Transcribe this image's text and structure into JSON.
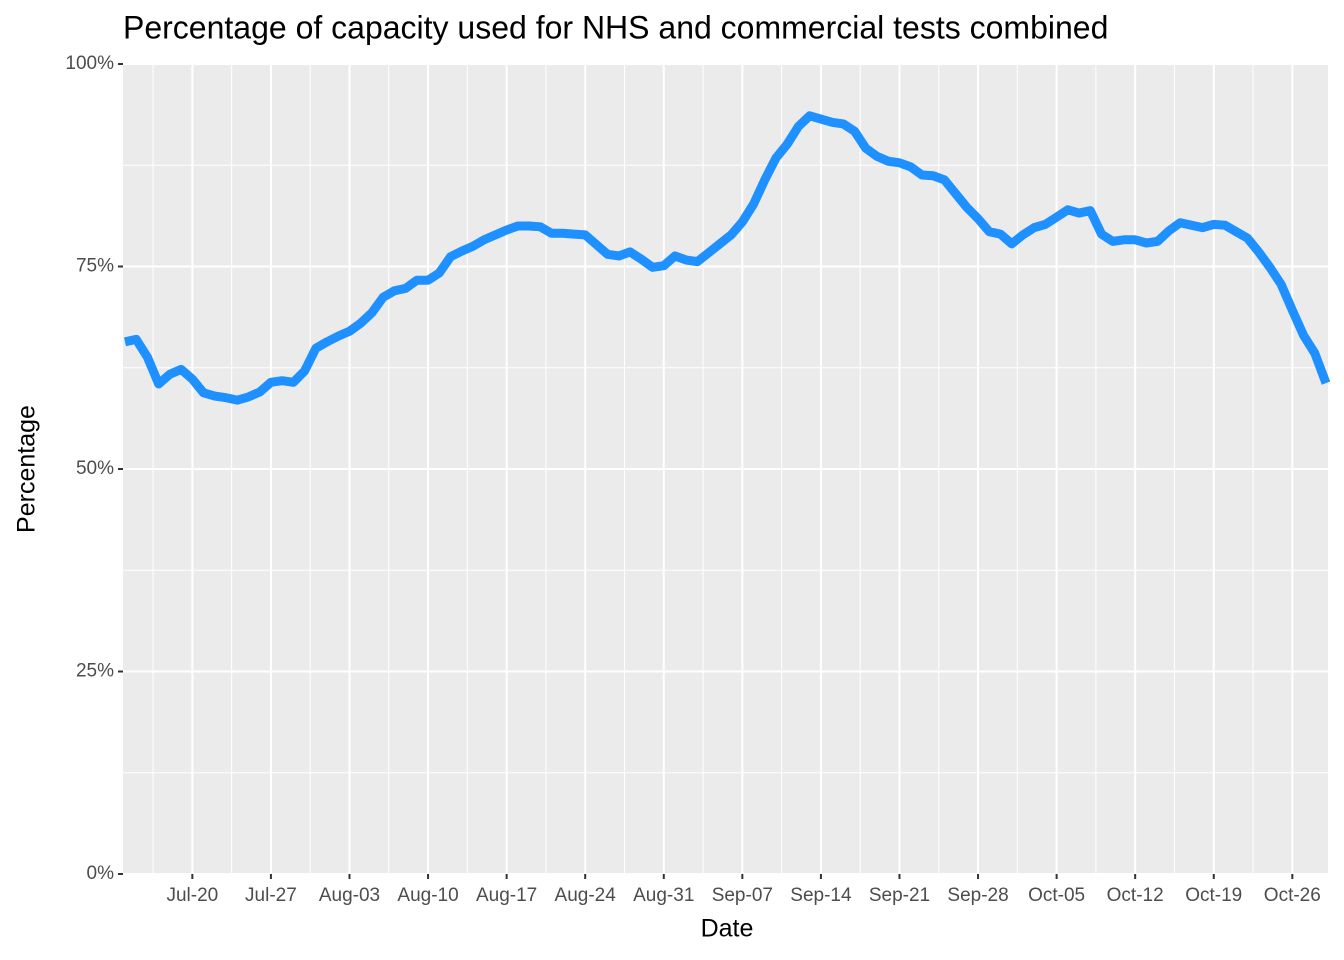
{
  "chart_data": {
    "type": "line",
    "title": "Percentage of capacity used for NHS and commercial tests combined",
    "x_label": "Date",
    "y_label": "Percentage",
    "x": [
      "Jul-14",
      "Jul-15",
      "Jul-16",
      "Jul-17",
      "Jul-18",
      "Jul-19",
      "Jul-20",
      "Jul-21",
      "Jul-22",
      "Jul-23",
      "Jul-24",
      "Jul-25",
      "Jul-26",
      "Jul-27",
      "Jul-28",
      "Jul-29",
      "Jul-30",
      "Jul-31",
      "Aug-01",
      "Aug-02",
      "Aug-03",
      "Aug-04",
      "Aug-05",
      "Aug-06",
      "Aug-07",
      "Aug-08",
      "Aug-09",
      "Aug-10",
      "Aug-11",
      "Aug-12",
      "Aug-13",
      "Aug-14",
      "Aug-15",
      "Aug-16",
      "Aug-17",
      "Aug-18",
      "Aug-19",
      "Aug-20",
      "Aug-21",
      "Aug-22",
      "Aug-23",
      "Aug-24",
      "Aug-25",
      "Aug-26",
      "Aug-27",
      "Aug-28",
      "Aug-29",
      "Aug-30",
      "Aug-31",
      "Sep-01",
      "Sep-02",
      "Sep-03",
      "Sep-04",
      "Sep-05",
      "Sep-06",
      "Sep-07",
      "Sep-08",
      "Sep-09",
      "Sep-10",
      "Sep-11",
      "Sep-12",
      "Sep-13",
      "Sep-14",
      "Sep-15",
      "Sep-16",
      "Sep-17",
      "Sep-18",
      "Sep-19",
      "Sep-20",
      "Sep-21",
      "Sep-22",
      "Sep-23",
      "Sep-24",
      "Sep-25",
      "Sep-26",
      "Sep-27",
      "Sep-28",
      "Sep-29",
      "Sep-30",
      "Oct-01",
      "Oct-02",
      "Oct-03",
      "Oct-04",
      "Oct-05",
      "Oct-06",
      "Oct-07",
      "Oct-08",
      "Oct-09",
      "Oct-10",
      "Oct-11",
      "Oct-12",
      "Oct-13",
      "Oct-14",
      "Oct-15",
      "Oct-16",
      "Oct-17",
      "Oct-18",
      "Oct-19",
      "Oct-20",
      "Oct-21",
      "Oct-22",
      "Oct-23",
      "Oct-24",
      "Oct-25",
      "Oct-26",
      "Oct-27",
      "Oct-28",
      "Oct-29"
    ],
    "series": [
      {
        "color": "#1e90ff",
        "values": [
          65.7,
          66.0,
          63.8,
          60.5,
          61.7,
          62.3,
          61.1,
          59.4,
          59.0,
          58.8,
          58.5,
          58.9,
          59.5,
          60.7,
          60.9,
          60.7,
          62.1,
          64.9,
          65.7,
          66.4,
          67.0,
          68.0,
          69.3,
          71.2,
          72.0,
          72.3,
          73.3,
          73.3,
          74.2,
          76.2,
          76.9,
          77.5,
          78.3,
          78.9,
          79.5,
          80.0,
          80.0,
          79.9,
          79.1,
          79.1,
          79.0,
          78.9,
          77.7,
          76.5,
          76.3,
          76.8,
          75.9,
          74.9,
          75.1,
          76.3,
          75.8,
          75.6,
          76.7,
          77.8,
          78.9,
          80.5,
          82.7,
          85.7,
          88.4,
          90.1,
          92.3,
          93.6,
          93.2,
          92.8,
          92.6,
          91.7,
          89.6,
          88.6,
          88.0,
          87.8,
          87.3,
          86.3,
          86.2,
          85.7,
          84.0,
          82.3,
          80.9,
          79.3,
          79.0,
          77.8,
          78.9,
          79.8,
          80.2,
          81.1,
          82.0,
          81.6,
          81.9,
          79.0,
          78.1,
          78.3,
          78.3,
          77.9,
          78.1,
          79.4,
          80.4,
          80.1,
          79.8,
          80.2,
          80.1,
          79.3,
          78.5,
          76.8,
          74.9,
          72.8,
          69.6,
          66.5,
          64.3,
          60.6
        ]
      }
    ],
    "xticks": [
      "Jul-20",
      "Jul-27",
      "Aug-03",
      "Aug-10",
      "Aug-17",
      "Aug-24",
      "Aug-31",
      "Sep-07",
      "Sep-14",
      "Sep-21",
      "Sep-28",
      "Oct-05",
      "Oct-12",
      "Oct-19",
      "Oct-26"
    ],
    "ylim": [
      0,
      100
    ],
    "yticks": [
      {
        "value": 0,
        "label": "0%"
      },
      {
        "value": 25,
        "label": "25%"
      },
      {
        "value": 50,
        "label": "50%"
      },
      {
        "value": 75,
        "label": "75%"
      },
      {
        "value": 100,
        "label": "100%"
      }
    ],
    "grid": true
  }
}
